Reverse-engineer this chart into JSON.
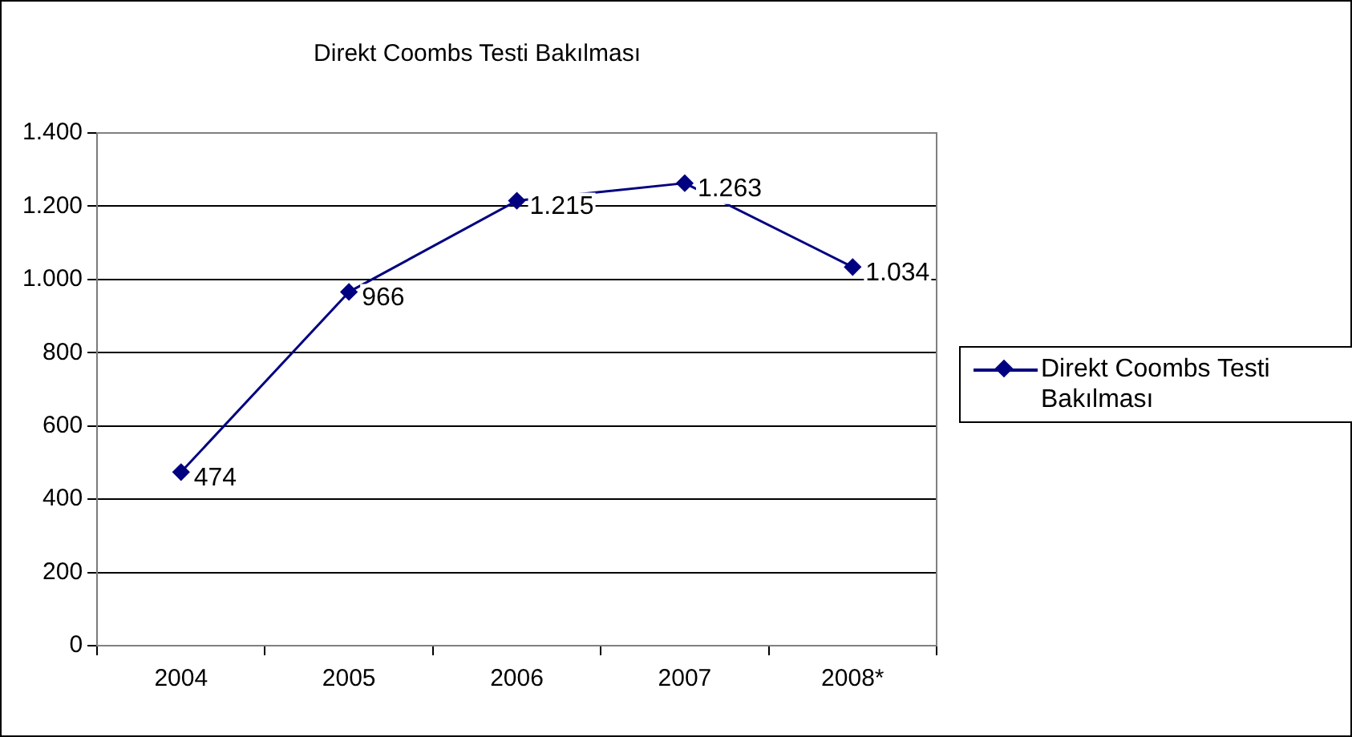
{
  "chart_data": {
    "type": "line",
    "title": "Direkt Coombs Testi Bakılması",
    "categories": [
      "2004",
      "2005",
      "2006",
      "2007",
      "2008*"
    ],
    "series": [
      {
        "name": "Direkt Coombs Testi Bakılması",
        "color": "#000080",
        "values": [
          474,
          966,
          1215,
          1263,
          1034
        ],
        "value_labels": [
          "474",
          "966",
          "1.215",
          "1.263",
          "1.034"
        ]
      }
    ],
    "ylim": [
      0,
      1400
    ],
    "yticks": [
      {
        "value": 0,
        "label": "0"
      },
      {
        "value": 200,
        "label": "200"
      },
      {
        "value": 400,
        "label": "400"
      },
      {
        "value": 600,
        "label": "600"
      },
      {
        "value": 800,
        "label": "800"
      },
      {
        "value": 1000,
        "label": "1.000"
      },
      {
        "value": 1200,
        "label": "1.200"
      },
      {
        "value": 1400,
        "label": "1.400"
      }
    ],
    "grid": "y",
    "legend": "right",
    "marker": "diamond",
    "line_style": "solid"
  }
}
